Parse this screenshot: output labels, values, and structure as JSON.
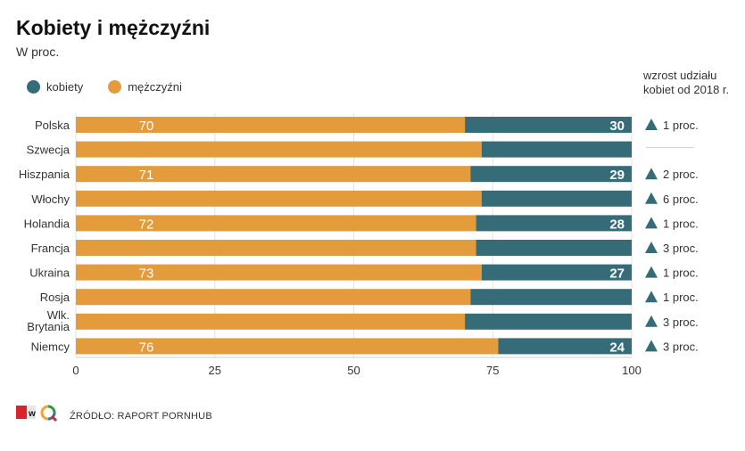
{
  "chart_data": {
    "type": "bar",
    "orientation": "horizontal",
    "stacked": true,
    "title": "Kobiety i mężczyźni",
    "subtitle": "W proc.",
    "categories": [
      "Polska",
      "Szwecja",
      "Hiszpania",
      "Włochy",
      "Holandia",
      "Francja",
      "Ukraina",
      "Rosja",
      "Wlk. Brytania",
      "Niemcy"
    ],
    "series": [
      {
        "name": "mężczyźni",
        "color": "#e39b3c",
        "values": [
          70,
          73,
          71,
          73,
          72,
          72,
          73,
          71,
          70,
          76
        ],
        "labels": [
          "70",
          "",
          "71",
          "",
          "72",
          "",
          "73",
          "",
          "",
          "76"
        ]
      },
      {
        "name": "kobiety",
        "color": "#366c77",
        "values": [
          30,
          27,
          29,
          27,
          28,
          28,
          27,
          29,
          30,
          24
        ],
        "labels": [
          "30",
          "",
          "29",
          "",
          "28",
          "",
          "27",
          "",
          "",
          "24"
        ]
      }
    ],
    "xlim": [
      0,
      100
    ],
    "xticks": [
      "0",
      "25",
      "50",
      "75",
      "100"
    ],
    "grid": true,
    "legend_position": "top-left",
    "growth_header": [
      "wzrost udziału",
      "kobiet od 2018 r."
    ],
    "growth": [
      "1 proc.",
      "",
      "2 proc.",
      "6 proc.",
      "1 proc.",
      "3 proc.",
      "1 proc.",
      "1 proc.",
      "3 proc.",
      "3 proc."
    ],
    "growth_icon": "triangle-up-icon",
    "growth_color": "#366c77"
  },
  "source": "ŹRÓDŁO: RAPORT PORNHUB",
  "logo_letter": "w"
}
